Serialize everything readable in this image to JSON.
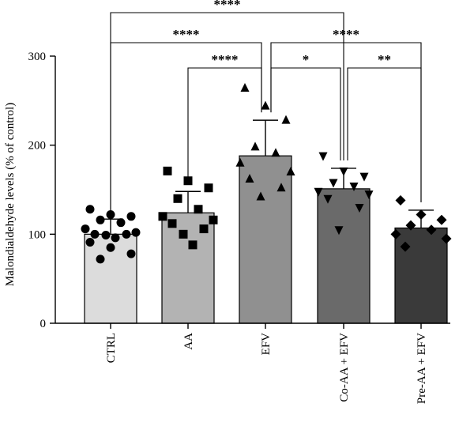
{
  "chart_data": {
    "type": "bar",
    "ylabel": "Malondialdehyde levels (% of control)",
    "xlabel": "",
    "title": "",
    "ylim": [
      0,
      300
    ],
    "yticks": [
      0,
      100,
      200,
      300
    ],
    "categories": [
      "CTRL",
      "AA",
      "EFV",
      "Co-AA + EFV",
      "Pre-AA + EFV"
    ],
    "values": [
      100,
      124,
      188,
      151,
      107
    ],
    "errors": [
      17,
      24,
      40,
      23,
      20
    ],
    "bar_colors": [
      "#dcdcdc",
      "#b3b3b3",
      "#909090",
      "#6a6a6a",
      "#3a3a3a"
    ],
    "markers": [
      "circle",
      "square",
      "triangle-up",
      "triangle-down",
      "diamond"
    ],
    "points": [
      [
        128,
        122,
        120,
        116,
        113,
        106,
        102,
        100,
        100,
        99,
        96,
        91,
        85,
        78,
        72
      ],
      [
        171,
        160,
        152,
        140,
        128,
        120,
        116,
        112,
        106,
        100,
        88
      ],
      [
        264,
        244,
        228,
        198,
        191,
        180,
        170,
        162,
        152,
        142
      ],
      [
        188,
        171,
        165,
        158,
        154,
        148,
        145,
        140,
        130,
        105
      ],
      [
        138,
        122,
        116,
        110,
        105,
        100,
        95,
        86
      ]
    ],
    "significance": [
      {
        "from": 0,
        "to": 3,
        "label": "****"
      },
      {
        "from": 0,
        "to": 2,
        "label": "****"
      },
      {
        "from": 2,
        "to": 4,
        "label": "****"
      },
      {
        "from": 1,
        "to": 2,
        "label": "****"
      },
      {
        "from": 2,
        "to": 3,
        "label": "*"
      },
      {
        "from": 3,
        "to": 4,
        "label": "**"
      }
    ]
  }
}
